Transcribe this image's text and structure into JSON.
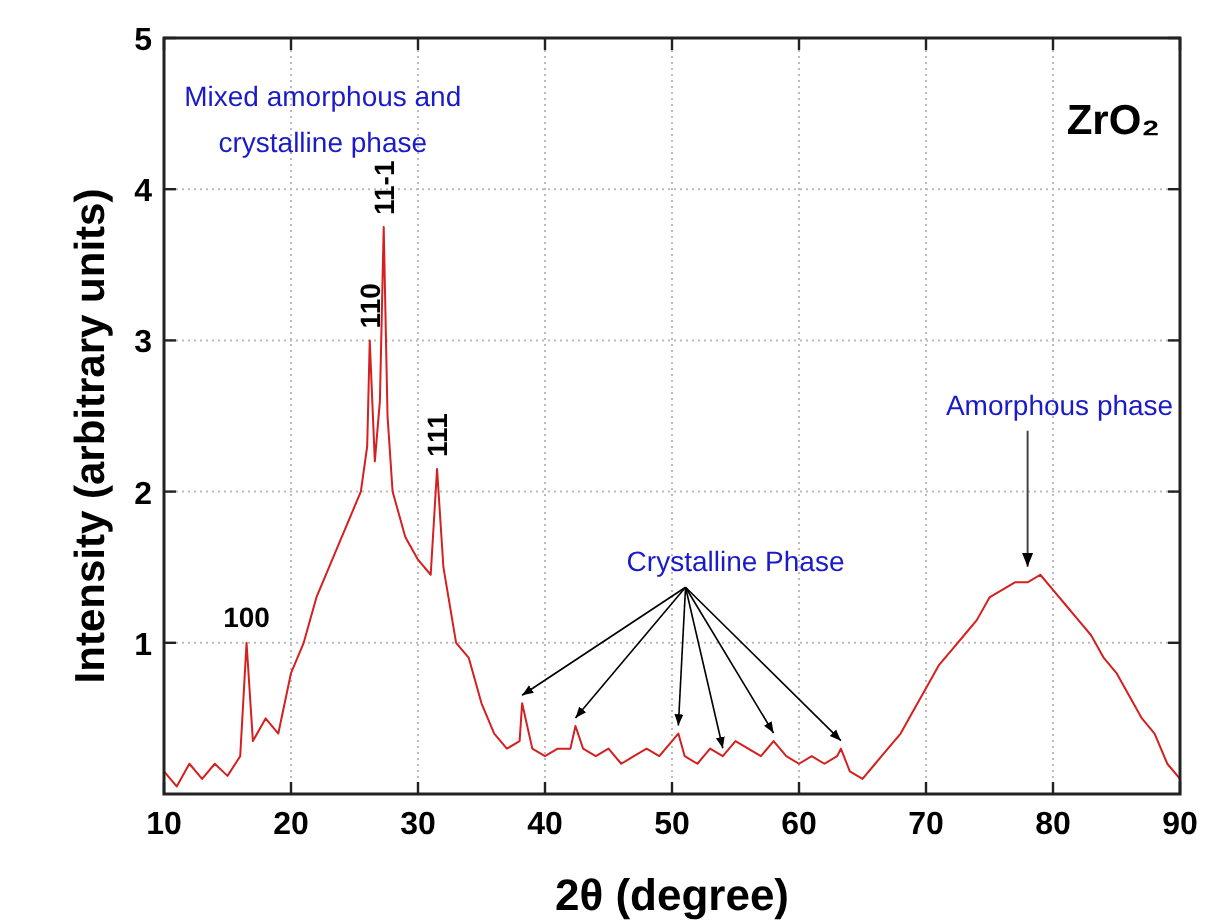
{
  "chart_data": {
    "type": "line",
    "title": "ZrO₂",
    "xlabel": "2θ (degree)",
    "ylabel": "Intensity (arbitrary units)",
    "x": [
      10,
      11,
      12,
      13,
      14,
      15,
      16,
      16.5,
      17,
      18,
      19,
      20,
      21,
      22,
      23,
      24,
      25,
      25.5,
      26,
      26.2,
      26.6,
      27,
      27.3,
      27.6,
      28,
      29,
      30,
      31,
      31.5,
      32,
      33,
      34,
      35,
      36,
      37,
      38,
      38.2,
      39,
      40,
      41,
      42,
      42.4,
      43,
      44,
      45,
      46,
      47,
      48,
      49,
      50,
      50.5,
      51,
      52,
      53,
      54,
      55,
      56,
      57,
      58,
      59,
      60,
      61,
      62,
      63,
      63.3,
      64,
      65,
      66,
      67,
      68,
      69,
      70,
      71,
      72,
      73,
      74,
      75,
      76,
      77,
      78,
      79,
      80,
      81,
      82,
      83,
      84,
      85,
      86,
      87,
      88,
      89,
      90
    ],
    "series": [
      {
        "color": "#d42020",
        "values": [
          0.15,
          0.05,
          0.2,
          0.1,
          0.2,
          0.12,
          0.25,
          1.0,
          0.35,
          0.5,
          0.4,
          0.8,
          1.0,
          1.3,
          1.5,
          1.7,
          1.9,
          2.0,
          2.3,
          3.0,
          2.2,
          2.6,
          3.75,
          2.5,
          2.0,
          1.7,
          1.55,
          1.45,
          2.15,
          1.5,
          1.0,
          0.9,
          0.6,
          0.4,
          0.3,
          0.35,
          0.6,
          0.3,
          0.25,
          0.3,
          0.3,
          0.45,
          0.3,
          0.25,
          0.3,
          0.2,
          0.25,
          0.3,
          0.25,
          0.35,
          0.4,
          0.25,
          0.2,
          0.3,
          0.25,
          0.35,
          0.3,
          0.25,
          0.35,
          0.25,
          0.2,
          0.25,
          0.2,
          0.25,
          0.3,
          0.15,
          0.1,
          0.2,
          0.3,
          0.4,
          0.55,
          0.7,
          0.85,
          0.95,
          1.05,
          1.15,
          1.3,
          1.35,
          1.4,
          1.4,
          1.45,
          1.35,
          1.25,
          1.15,
          1.05,
          0.9,
          0.8,
          0.65,
          0.5,
          0.4,
          0.2,
          0.1
        ]
      }
    ],
    "xlim": [
      10,
      90
    ],
    "xticks": [
      10,
      20,
      30,
      40,
      50,
      60,
      70,
      80,
      90
    ],
    "ylim": [
      0,
      5
    ],
    "yticks": [
      1,
      2,
      3,
      4,
      5
    ],
    "grid": true,
    "annotations": [
      "Mixed amorphous and crystalline  phase",
      {
        "text": "Crystalline Phase",
        "x": 38.2,
        "y": 0.6
      },
      {
        "text": "Amorphous phase",
        "x": 78,
        "y": 1.45
      },
      {
        "text": "100",
        "x": 16.5,
        "y": 1.0
      },
      {
        "text": "110",
        "x": 26.2,
        "y": 3.0
      },
      {
        "text": "11-1",
        "x": 27.3,
        "y": 3.75
      },
      {
        "text": "111",
        "x": 31.5,
        "y": 2.15
      }
    ]
  }
}
